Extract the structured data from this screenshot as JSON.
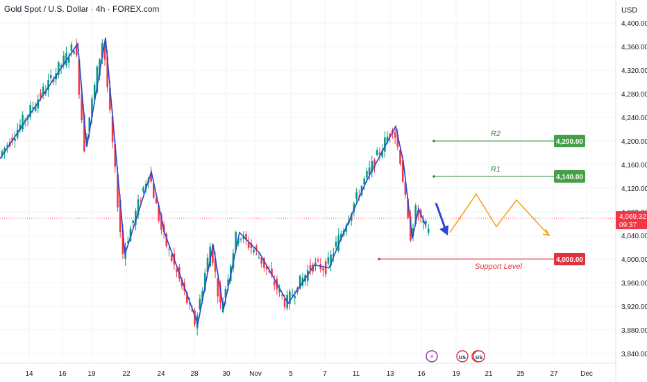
{
  "header": {
    "title": "Gold Spot / U.S. Dollar · 4h · FOREX.com",
    "currency": "USD"
  },
  "price_tag": {
    "value": "4,069.32",
    "countdown": "09:37",
    "color": "#f23645"
  },
  "chart_data": {
    "type": "candlestick",
    "ylim": [
      3820,
      4420
    ],
    "y_ticks": [
      "4,400.00",
      "4,360.00",
      "4,320.00",
      "4,280.00",
      "4,240.00",
      "4,200.00",
      "4,160.00",
      "4,120.00",
      "4,080.00",
      "4,040.00",
      "4,000.00",
      "3,960.00",
      "3,920.00",
      "3,880.00",
      "3,840.00"
    ],
    "x_ticks": [
      "14",
      "16",
      "19",
      "22",
      "24",
      "28",
      "30",
      "Nov",
      "5",
      "7",
      "11",
      "13",
      "16",
      "19",
      "21",
      "25",
      "27",
      "Dec"
    ],
    "colors": {
      "up": "#089981",
      "down": "#f23645",
      "wave": "#2a47d0",
      "projection": "#f7a21b",
      "resistance": "#2e8b3a",
      "support": "#e0313d"
    },
    "levels": [
      {
        "name": "R2",
        "value": 4200,
        "label": "4,200.00"
      },
      {
        "name": "R1",
        "value": 4140,
        "label": "4,140.00"
      },
      {
        "name": "Support Level",
        "value": 4000,
        "label": "4,000.00"
      }
    ],
    "wave": [
      [
        0,
        4170
      ],
      [
        112,
        4365
      ],
      [
        125,
        4190
      ],
      [
        152,
        4375
      ],
      [
        180,
        4008
      ],
      [
        218,
        4148
      ],
      [
        237,
        4045
      ],
      [
        285,
        3890
      ],
      [
        307,
        4025
      ],
      [
        322,
        3915
      ],
      [
        345,
        4045
      ],
      [
        374,
        4010
      ],
      [
        415,
        3925
      ],
      [
        453,
        3990
      ],
      [
        474,
        3985
      ],
      [
        488,
        4025
      ],
      [
        527,
        4130
      ],
      [
        570,
        4225
      ],
      [
        581,
        4165
      ],
      [
        594,
        4035
      ],
      [
        603,
        4085
      ],
      [
        614,
        4055
      ]
    ],
    "projection": [
      [
        648,
        4045
      ],
      [
        686,
        4110
      ],
      [
        715,
        4055
      ],
      [
        744,
        4100
      ],
      [
        791,
        4040
      ]
    ],
    "arrow": [
      [
        628,
        4095
      ],
      [
        645,
        4040
      ]
    ],
    "candle_range": {
      "x0": 3,
      "x1": 620
    },
    "event_markers": [
      "⚡",
      "US",
      "US",
      "US"
    ]
  }
}
